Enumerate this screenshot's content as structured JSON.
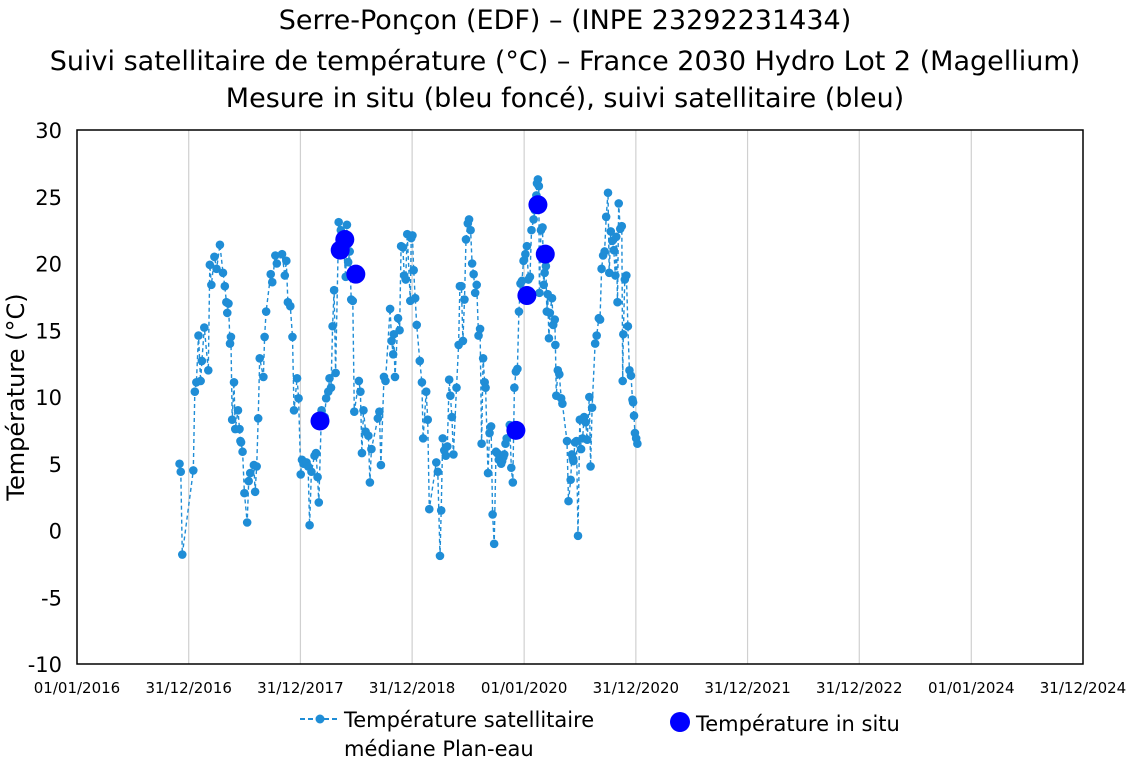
{
  "chart_data": {
    "type": "scatter",
    "title": [
      "Serre-Ponçon (EDF) – (INPE 23292231434)",
      "Suivi satellitaire de température (°C) – France 2030 Hydro Lot 2 (Magellium)",
      "Mesure in situ (bleu foncé), suivi satellitaire (bleu)"
    ],
    "ylabel": "Température (°C)",
    "xlabel": "",
    "ylim": [
      -10,
      30
    ],
    "yticks": [
      "30",
      "25",
      "20",
      "15",
      "10",
      "5",
      "0",
      "-5",
      "-10"
    ],
    "xlim": [
      "2016-01-01",
      "2024-12-31"
    ],
    "xticks": [
      "01/01/2016",
      "31/12/2016",
      "31/12/2017",
      "31/12/2018",
      "01/01/2020",
      "31/12/2020",
      "31/12/2021",
      "31/12/2022",
      "01/01/2024",
      "31/12/2024"
    ],
    "grid": "vertical",
    "legend_position": "bottom",
    "series": [
      {
        "name": "Température satellitaire médiane Plan-eau",
        "color": "#1f8dd6",
        "style": "dashed line with markers",
        "points": [
          [
            "2016-12-01",
            5.0
          ],
          [
            "2016-12-05",
            4.4
          ],
          [
            "2016-12-10",
            -1.8
          ],
          [
            "2017-01-15",
            4.5
          ],
          [
            "2017-01-20",
            10.4
          ],
          [
            "2017-01-25",
            11.1
          ],
          [
            "2017-02-01",
            14.6
          ],
          [
            "2017-02-08",
            11.2
          ],
          [
            "2017-02-12",
            12.7
          ],
          [
            "2017-02-20",
            15.2
          ],
          [
            "2017-03-05",
            12.0
          ],
          [
            "2017-03-10",
            19.9
          ],
          [
            "2017-03-15",
            18.4
          ],
          [
            "2017-03-25",
            20.5
          ],
          [
            "2017-04-01",
            19.6
          ],
          [
            "2017-04-12",
            21.4
          ],
          [
            "2017-04-22",
            19.3
          ],
          [
            "2017-04-28",
            18.3
          ],
          [
            "2017-05-03",
            17.1
          ],
          [
            "2017-05-06",
            16.3
          ],
          [
            "2017-05-10",
            17.0
          ],
          [
            "2017-05-15",
            14.0
          ],
          [
            "2017-05-18",
            14.5
          ],
          [
            "2017-05-22",
            8.3
          ],
          [
            "2017-05-28",
            11.1
          ],
          [
            "2017-06-01",
            7.6
          ],
          [
            "2017-06-10",
            9.0
          ],
          [
            "2017-06-15",
            7.6
          ],
          [
            "2017-06-18",
            6.7
          ],
          [
            "2017-06-20",
            6.6
          ],
          [
            "2017-06-25",
            5.9
          ],
          [
            "2017-07-01",
            2.8
          ],
          [
            "2017-07-10",
            0.6
          ],
          [
            "2017-07-15",
            3.7
          ],
          [
            "2017-07-20",
            4.3
          ],
          [
            "2017-08-01",
            4.9
          ],
          [
            "2017-08-05",
            2.9
          ],
          [
            "2017-08-10",
            4.8
          ],
          [
            "2017-08-15",
            8.4
          ],
          [
            "2017-08-20",
            12.9
          ],
          [
            "2017-09-01",
            11.5
          ],
          [
            "2017-09-05",
            14.5
          ],
          [
            "2017-09-10",
            16.4
          ],
          [
            "2017-09-25",
            19.2
          ],
          [
            "2017-09-30",
            18.6
          ],
          [
            "2017-10-10",
            20.6
          ],
          [
            "2017-10-15",
            20.0
          ],
          [
            "2017-11-01",
            20.7
          ],
          [
            "2017-11-10",
            19.1
          ],
          [
            "2017-11-15",
            20.2
          ],
          [
            "2017-11-20",
            17.1
          ],
          [
            "2017-11-28",
            16.8
          ],
          [
            "2017-12-05",
            14.5
          ],
          [
            "2017-12-10",
            9.0
          ],
          [
            "2017-12-20",
            11.4
          ],
          [
            "2017-12-25",
            9.9
          ],
          [
            "2018-01-01",
            4.2
          ],
          [
            "2018-01-05",
            5.3
          ],
          [
            "2018-01-10",
            5.0
          ],
          [
            "2018-01-20",
            5.1
          ],
          [
            "2018-01-25",
            4.8
          ],
          [
            "2018-01-30",
            0.4
          ],
          [
            "2018-02-05",
            4.4
          ],
          [
            "2018-02-15",
            5.6
          ],
          [
            "2018-02-20",
            5.8
          ],
          [
            "2018-02-25",
            4.0
          ],
          [
            "2018-03-01",
            2.1
          ],
          [
            "2018-03-10",
            9.0
          ],
          [
            "2018-03-20",
            8.5
          ],
          [
            "2018-03-25",
            9.9
          ],
          [
            "2018-04-01",
            10.4
          ],
          [
            "2018-04-05",
            11.4
          ],
          [
            "2018-04-10",
            10.7
          ],
          [
            "2018-04-15",
            15.3
          ],
          [
            "2018-04-20",
            18.0
          ],
          [
            "2018-04-25",
            11.8
          ],
          [
            "2018-05-05",
            23.1
          ],
          [
            "2018-05-12",
            22.5
          ],
          [
            "2018-05-20",
            21.5
          ],
          [
            "2018-05-28",
            19.0
          ],
          [
            "2018-06-01",
            22.9
          ],
          [
            "2018-06-05",
            20.1
          ],
          [
            "2018-06-10",
            20.9
          ],
          [
            "2018-06-15",
            17.3
          ],
          [
            "2018-06-20",
            17.2
          ],
          [
            "2018-06-25",
            8.9
          ],
          [
            "2018-07-10",
            11.2
          ],
          [
            "2018-07-15",
            10.4
          ],
          [
            "2018-07-20",
            5.8
          ],
          [
            "2018-07-25",
            9.0
          ],
          [
            "2018-08-01",
            7.4
          ],
          [
            "2018-08-10",
            7.1
          ],
          [
            "2018-08-15",
            3.6
          ],
          [
            "2018-08-20",
            6.1
          ],
          [
            "2018-09-10",
            8.4
          ],
          [
            "2018-09-15",
            8.9
          ],
          [
            "2018-09-20",
            4.9
          ],
          [
            "2018-09-30",
            11.5
          ],
          [
            "2018-10-05",
            11.2
          ],
          [
            "2018-10-20",
            16.6
          ],
          [
            "2018-10-25",
            14.2
          ],
          [
            "2018-10-30",
            13.2
          ],
          [
            "2018-11-01",
            14.7
          ],
          [
            "2018-11-05",
            11.5
          ],
          [
            "2018-11-15",
            15.9
          ],
          [
            "2018-11-20",
            15.0
          ],
          [
            "2018-11-25",
            21.3
          ],
          [
            "2018-12-01",
            21.2
          ],
          [
            "2018-12-05",
            19.1
          ],
          [
            "2018-12-10",
            18.8
          ],
          [
            "2018-12-15",
            22.2
          ],
          [
            "2018-12-25",
            17.2
          ],
          [
            "2018-12-28",
            21.9
          ],
          [
            "2019-01-01",
            22.1
          ],
          [
            "2019-01-05",
            19.5
          ],
          [
            "2019-01-10",
            17.4
          ],
          [
            "2019-01-15",
            15.4
          ],
          [
            "2019-01-25",
            12.7
          ],
          [
            "2019-02-01",
            11.1
          ],
          [
            "2019-02-05",
            6.9
          ],
          [
            "2019-02-15",
            10.4
          ],
          [
            "2019-02-20",
            8.3
          ],
          [
            "2019-02-25",
            1.6
          ],
          [
            "2019-03-20",
            5.1
          ],
          [
            "2019-03-25",
            4.4
          ],
          [
            "2019-04-01",
            -1.9
          ],
          [
            "2019-04-05",
            1.5
          ],
          [
            "2019-04-10",
            6.9
          ],
          [
            "2019-04-15",
            6.0
          ],
          [
            "2019-04-20",
            5.6
          ],
          [
            "2019-04-25",
            6.3
          ],
          [
            "2019-05-01",
            11.3
          ],
          [
            "2019-05-05",
            10.1
          ],
          [
            "2019-05-10",
            8.5
          ],
          [
            "2019-05-15",
            5.7
          ],
          [
            "2019-05-25",
            10.7
          ],
          [
            "2019-06-01",
            13.9
          ],
          [
            "2019-06-05",
            18.3
          ],
          [
            "2019-06-10",
            18.3
          ],
          [
            "2019-06-15",
            14.2
          ],
          [
            "2019-06-20",
            17.3
          ],
          [
            "2019-06-25",
            21.8
          ],
          [
            "2019-07-01",
            23.0
          ],
          [
            "2019-07-05",
            23.3
          ],
          [
            "2019-07-10",
            22.5
          ],
          [
            "2019-07-15",
            20.0
          ],
          [
            "2019-07-20",
            19.2
          ],
          [
            "2019-07-25",
            17.8
          ],
          [
            "2019-07-30",
            18.4
          ],
          [
            "2019-08-05",
            14.6
          ],
          [
            "2019-08-10",
            15.1
          ],
          [
            "2019-08-15",
            6.5
          ],
          [
            "2019-08-20",
            12.9
          ],
          [
            "2019-08-25",
            11.1
          ],
          [
            "2019-08-28",
            10.7
          ],
          [
            "2019-09-05",
            4.3
          ],
          [
            "2019-09-10",
            7.3
          ],
          [
            "2019-09-15",
            7.8
          ],
          [
            "2019-09-20",
            1.2
          ],
          [
            "2019-09-25",
            -1.0
          ],
          [
            "2019-10-01",
            5.9
          ],
          [
            "2019-10-05",
            5.8
          ],
          [
            "2019-10-10",
            5.3
          ],
          [
            "2019-10-15",
            5.6
          ],
          [
            "2019-10-18",
            5.0
          ],
          [
            "2019-10-21",
            5.2
          ],
          [
            "2019-10-25",
            5.5
          ],
          [
            "2019-10-28",
            5.7
          ],
          [
            "2019-11-01",
            6.5
          ],
          [
            "2019-11-05",
            6.9
          ],
          [
            "2019-11-15",
            7.9
          ],
          [
            "2019-11-20",
            4.7
          ],
          [
            "2019-11-25",
            3.6
          ],
          [
            "2019-11-30",
            10.7
          ],
          [
            "2019-12-05",
            11.9
          ],
          [
            "2019-12-10",
            12.1
          ],
          [
            "2019-12-15",
            16.4
          ],
          [
            "2019-12-20",
            18.5
          ],
          [
            "2019-12-25",
            18.7
          ],
          [
            "2019-12-30",
            20.2
          ],
          [
            "2020-01-05",
            20.7
          ],
          [
            "2020-01-10",
            21.3
          ],
          [
            "2020-01-15",
            18.8
          ],
          [
            "2020-01-20",
            19.0
          ],
          [
            "2020-01-25",
            22.5
          ],
          [
            "2020-02-01",
            23.3
          ],
          [
            "2020-02-05",
            24.0
          ],
          [
            "2020-02-10",
            25.1
          ],
          [
            "2020-02-12",
            26.0
          ],
          [
            "2020-02-15",
            26.3
          ],
          [
            "2020-02-18",
            25.8
          ],
          [
            "2020-02-20",
            17.8
          ],
          [
            "2020-02-25",
            22.5
          ],
          [
            "2020-03-01",
            22.7
          ],
          [
            "2020-03-05",
            18.4
          ],
          [
            "2020-03-08",
            19.3
          ],
          [
            "2020-03-12",
            19.8
          ],
          [
            "2020-03-15",
            16.4
          ],
          [
            "2020-03-18",
            17.7
          ],
          [
            "2020-03-22",
            14.4
          ],
          [
            "2020-03-25",
            16.3
          ],
          [
            "2020-04-01",
            17.4
          ],
          [
            "2020-04-05",
            15.4
          ],
          [
            "2020-04-10",
            15.8
          ],
          [
            "2020-04-12",
            13.9
          ],
          [
            "2020-04-15",
            10.1
          ],
          [
            "2020-04-20",
            12.0
          ],
          [
            "2020-04-25",
            11.7
          ],
          [
            "2020-05-01",
            9.9
          ],
          [
            "2020-05-05",
            9.5
          ],
          [
            "2020-05-20",
            6.7
          ],
          [
            "2020-05-25",
            2.2
          ],
          [
            "2020-06-01",
            3.8
          ],
          [
            "2020-06-05",
            5.7
          ],
          [
            "2020-06-08",
            5.4
          ],
          [
            "2020-06-10",
            5.2
          ],
          [
            "2020-06-15",
            6.6
          ],
          [
            "2020-06-20",
            6.7
          ],
          [
            "2020-06-25",
            -0.4
          ],
          [
            "2020-07-01",
            8.3
          ],
          [
            "2020-07-05",
            6.1
          ],
          [
            "2020-07-10",
            6.9
          ],
          [
            "2020-07-15",
            8.5
          ],
          [
            "2020-07-20",
            8.1
          ],
          [
            "2020-07-25",
            6.8
          ],
          [
            "2020-08-01",
            10.0
          ],
          [
            "2020-08-05",
            4.8
          ],
          [
            "2020-08-10",
            9.2
          ],
          [
            "2020-08-20",
            14.0
          ],
          [
            "2020-08-25",
            14.6
          ],
          [
            "2020-09-01",
            15.9
          ],
          [
            "2020-09-05",
            15.8
          ],
          [
            "2020-09-10",
            19.6
          ],
          [
            "2020-09-15",
            20.6
          ],
          [
            "2020-09-20",
            20.9
          ],
          [
            "2020-09-25",
            23.5
          ],
          [
            "2020-10-01",
            25.3
          ],
          [
            "2020-10-05",
            19.3
          ],
          [
            "2020-10-10",
            22.4
          ],
          [
            "2020-10-15",
            21.7
          ],
          [
            "2020-10-20",
            21.0
          ],
          [
            "2020-10-25",
            19.1
          ],
          [
            "2020-10-28",
            22.0
          ],
          [
            "2020-11-01",
            17.1
          ],
          [
            "2020-11-05",
            24.5
          ],
          [
            "2020-11-10",
            22.6
          ],
          [
            "2020-11-15",
            22.8
          ],
          [
            "2020-11-18",
            11.2
          ],
          [
            "2020-11-20",
            14.7
          ],
          [
            "2020-11-25",
            18.8
          ],
          [
            "2020-11-30",
            19.1
          ],
          [
            "2020-12-05",
            15.3
          ],
          [
            "2020-12-10",
            12.0
          ],
          [
            "2020-12-15",
            11.6
          ],
          [
            "2020-12-20",
            9.8
          ],
          [
            "2020-12-22",
            9.6
          ],
          [
            "2020-12-25",
            8.6
          ],
          [
            "2020-12-28",
            7.3
          ],
          [
            "2021-01-01",
            6.9
          ],
          [
            "2021-01-05",
            6.5
          ]
        ]
      },
      {
        "name": "Température in situ",
        "color": "#0000ff",
        "style": "markers",
        "points": [
          [
            "2018-03-05",
            8.2
          ],
          [
            "2018-05-10",
            21.0
          ],
          [
            "2018-05-25",
            21.8
          ],
          [
            "2018-06-30",
            19.2
          ],
          [
            "2019-12-05",
            7.5
          ],
          [
            "2020-01-10",
            17.6
          ],
          [
            "2020-02-15",
            24.4
          ],
          [
            "2020-03-10",
            20.7
          ]
        ]
      }
    ]
  }
}
